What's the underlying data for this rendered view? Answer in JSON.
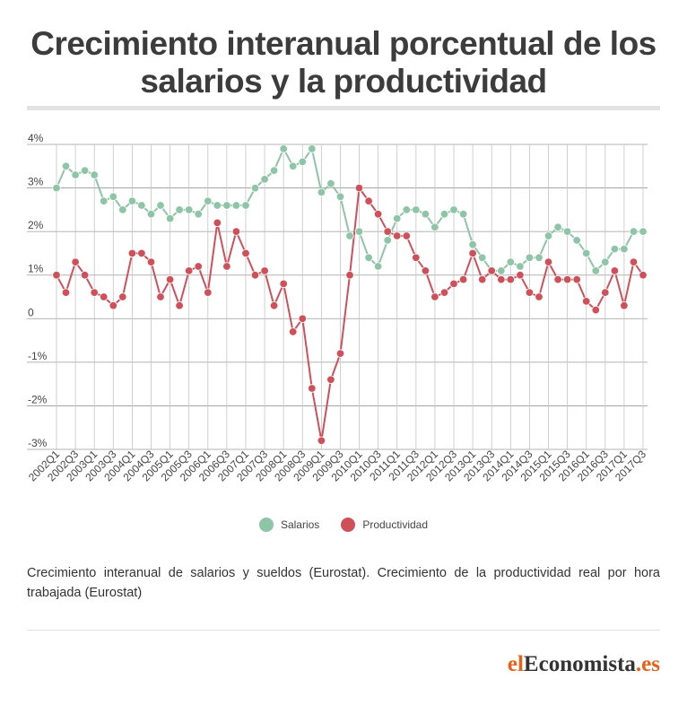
{
  "title": "Crecimiento interanual porcentual de los salarios y la productividad",
  "note": "Crecimiento interanual de salarios y sueldos (Eurostat). Crecimiento de la productividad real por hora trabajada (Eurostat)",
  "brand": {
    "prefix": "el",
    "middle": "Economista",
    "suffix": ".es"
  },
  "colors": {
    "salarios": "#8dc5a6",
    "productividad": "#d0505a",
    "brand": "#e8611a"
  },
  "chart_data": {
    "type": "line",
    "title": "Crecimiento interanual porcentual de los salarios y la productividad",
    "xlabel": "",
    "ylabel": "",
    "ylim": [
      -3,
      4
    ],
    "yticks": [
      {
        "v": 4,
        "label": "4%"
      },
      {
        "v": 3,
        "label": "3%"
      },
      {
        "v": 2,
        "label": "2%"
      },
      {
        "v": 1,
        "label": "1%"
      },
      {
        "v": 0,
        "label": "0"
      },
      {
        "v": -1,
        "label": "-1%"
      },
      {
        "v": -2,
        "label": "-2%"
      },
      {
        "v": -3,
        "label": "-3%"
      }
    ],
    "grid": true,
    "legend_position": "bottom-center",
    "x": [
      "2002Q1",
      "2002Q2",
      "2002Q3",
      "2002Q4",
      "2003Q1",
      "2003Q2",
      "2003Q3",
      "2003Q4",
      "2004Q1",
      "2004Q2",
      "2004Q3",
      "2004Q4",
      "2005Q1",
      "2005Q2",
      "2005Q3",
      "2005Q4",
      "2006Q1",
      "2006Q2",
      "2006Q3",
      "2006Q4",
      "2007Q1",
      "2007Q2",
      "2007Q3",
      "2007Q4",
      "2008Q1",
      "2008Q2",
      "2008Q3",
      "2008Q4",
      "2009Q1",
      "2009Q2",
      "2009Q3",
      "2009Q4",
      "2010Q1",
      "2010Q2",
      "2010Q3",
      "2010Q4",
      "2011Q1",
      "2011Q2",
      "2011Q3",
      "2011Q4",
      "2012Q1",
      "2012Q2",
      "2012Q3",
      "2012Q4",
      "2013Q1",
      "2013Q2",
      "2013Q3",
      "2013Q4",
      "2014Q1",
      "2014Q2",
      "2014Q3",
      "2014Q4",
      "2015Q1",
      "2015Q2",
      "2015Q3",
      "2015Q4",
      "2016Q1",
      "2016Q2",
      "2016Q3",
      "2016Q4",
      "2017Q1",
      "2017Q2",
      "2017Q3"
    ],
    "tick_labels": [
      "2002Q1",
      "2002Q3",
      "2003Q1",
      "2003Q3",
      "2004Q1",
      "2004Q3",
      "2005Q1",
      "2005Q3",
      "2006Q1",
      "2006Q3",
      "2007Q1",
      "2007Q3",
      "2008Q1",
      "2008Q3",
      "2009Q1",
      "2009Q3",
      "2010Q1",
      "2010Q3",
      "2011Q1",
      "2011Q3",
      "2012Q1",
      "2012Q3",
      "2013Q1",
      "2013Q3",
      "2014Q1",
      "2014Q3",
      "2015Q1",
      "2015Q3",
      "2016Q1",
      "2016Q3",
      "2017Q1",
      "2017Q3"
    ],
    "series": [
      {
        "name": "Salarios",
        "color": "#8dc5a6",
        "values": [
          3.0,
          3.5,
          3.3,
          3.4,
          3.3,
          2.7,
          2.8,
          2.5,
          2.7,
          2.6,
          2.4,
          2.6,
          2.3,
          2.5,
          2.5,
          2.4,
          2.7,
          2.6,
          2.6,
          2.6,
          2.6,
          3.0,
          3.2,
          3.4,
          3.9,
          3.5,
          3.6,
          3.9,
          2.9,
          3.1,
          2.8,
          1.9,
          2.0,
          1.4,
          1.2,
          1.8,
          2.3,
          2.5,
          2.5,
          2.4,
          2.1,
          2.4,
          2.5,
          2.4,
          1.7,
          1.4,
          1.1,
          1.1,
          1.3,
          1.2,
          1.4,
          1.4,
          1.9,
          2.1,
          2.0,
          1.8,
          1.5,
          1.1,
          1.3,
          1.6,
          1.6,
          2.0,
          2.0
        ]
      },
      {
        "name": "Productividad",
        "color": "#d0505a",
        "values": [
          1.0,
          0.6,
          1.3,
          1.0,
          0.6,
          0.5,
          0.3,
          0.5,
          1.5,
          1.5,
          1.3,
          0.5,
          0.9,
          0.3,
          1.1,
          1.2,
          0.6,
          2.2,
          1.2,
          2.0,
          1.5,
          1.0,
          1.1,
          0.3,
          0.8,
          -0.3,
          0.0,
          -1.6,
          -2.8,
          -1.4,
          -0.8,
          1.0,
          3.0,
          2.7,
          2.4,
          2.0,
          1.9,
          1.9,
          1.4,
          1.1,
          0.5,
          0.6,
          0.8,
          0.9,
          1.5,
          0.9,
          1.1,
          0.9,
          0.9,
          1.0,
          0.6,
          0.5,
          1.3,
          0.9,
          0.9,
          0.9,
          0.4,
          0.2,
          0.6,
          1.1,
          0.3,
          1.3,
          1.0
        ]
      }
    ]
  }
}
